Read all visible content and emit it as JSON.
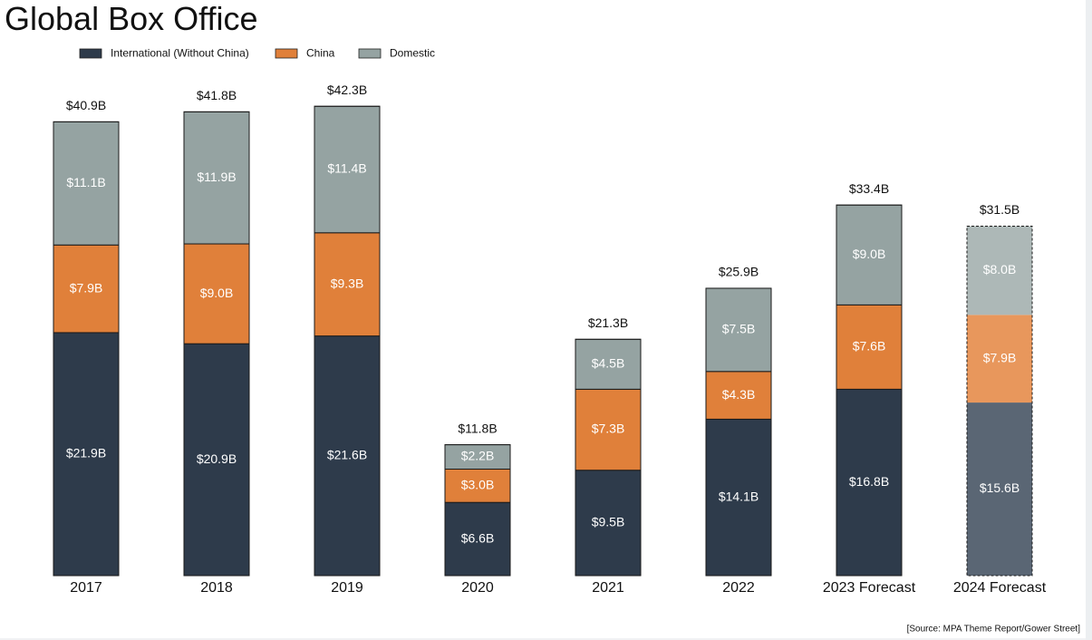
{
  "chart_data": {
    "type": "stacked_bar",
    "title": "Global Box Office",
    "categories": [
      "2017",
      "2018",
      "2019",
      "2020",
      "2021",
      "2022",
      "2023 Forecast",
      "2024 Forecast"
    ],
    "series": [
      {
        "name": "International (Without China)",
        "color": "#2e3b4b",
        "colors": [
          "#2e3b4b",
          "#2e3b4b",
          "#2e3b4b",
          "#2e3b4b",
          "#2e3b4b",
          "#2e3b4b",
          "#2e3b4b",
          "#5a6674"
        ],
        "values": [
          21.9,
          20.9,
          21.6,
          6.6,
          9.5,
          14.1,
          16.8,
          15.6
        ],
        "value_labels": [
          "$21.9B",
          "$20.9B",
          "$21.6B",
          "$6.6B",
          "$9.5B",
          "$14.1B",
          "$16.8B",
          "$15.6B"
        ]
      },
      {
        "name": "China",
        "color": "#e0803a",
        "colors": [
          "#e0803a",
          "#e0803a",
          "#e0803a",
          "#e0803a",
          "#e0803a",
          "#e0803a",
          "#e0803a",
          "#e8975c"
        ],
        "values": [
          7.9,
          9.0,
          9.3,
          3.0,
          7.3,
          4.3,
          7.6,
          7.9
        ],
        "value_labels": [
          "$7.9B",
          "$9.0B",
          "$9.3B",
          "$3.0B",
          "$7.3B",
          "$4.3B",
          "$7.6B",
          "$7.9B"
        ]
      },
      {
        "name": "Domestic",
        "color": "#95a3a2",
        "colors": [
          "#95a3a2",
          "#95a3a2",
          "#95a3a2",
          "#95a3a2",
          "#95a3a2",
          "#95a3a2",
          "#95a3a2",
          "#adb8b7"
        ],
        "values": [
          11.1,
          11.9,
          11.4,
          2.2,
          4.5,
          7.5,
          9.0,
          8.0
        ],
        "value_labels": [
          "$11.1B",
          "$11.9B",
          "$11.4B",
          "$2.2B",
          "$4.5B",
          "$7.5B",
          "$9.0B",
          "$8.0B"
        ]
      }
    ],
    "totals": {
      "values": [
        40.9,
        41.8,
        42.3,
        11.8,
        21.3,
        25.9,
        33.4,
        31.5
      ],
      "value_labels": [
        "$40.9B",
        "$41.8B",
        "$42.3B",
        "$11.8B",
        "$21.3B",
        "$25.9B",
        "$33.4B",
        "$31.5B"
      ],
      "outline": [
        "solid",
        "solid",
        "solid",
        "solid",
        "solid",
        "solid",
        "solid",
        "dashed"
      ]
    },
    "legend": "top-left",
    "source": "[Source: MPA Theme Report/Gower Street]"
  }
}
